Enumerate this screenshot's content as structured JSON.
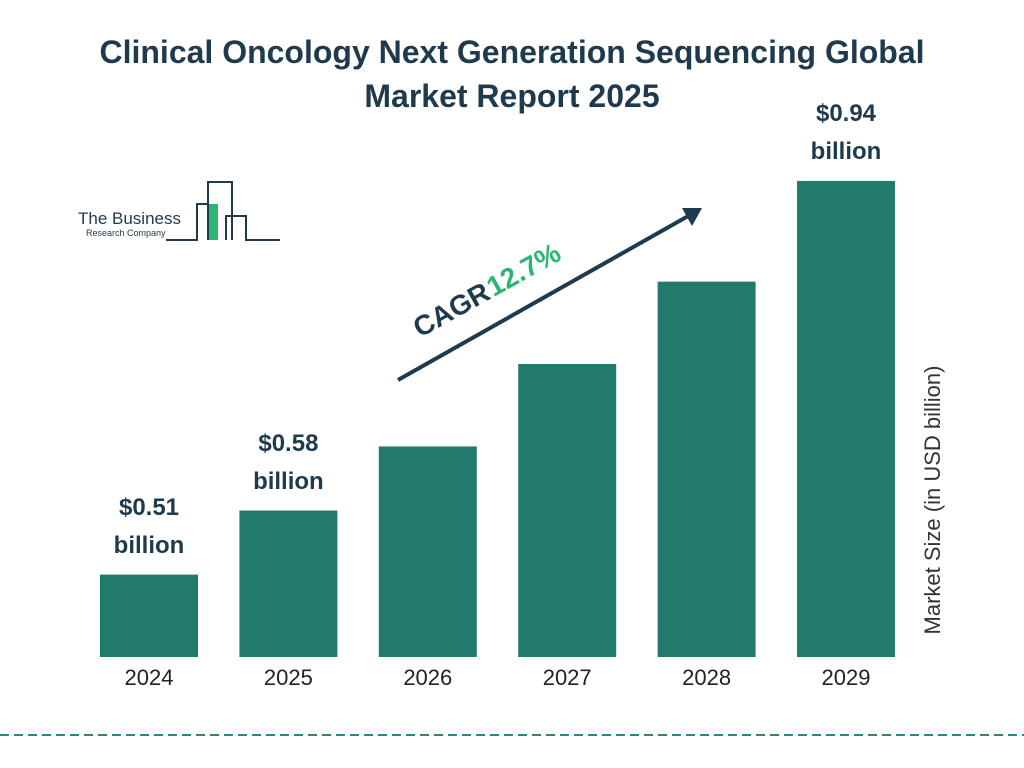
{
  "chart_data": {
    "type": "bar",
    "title": "Clinical Oncology Next Generation Sequencing Global Market Report 2025",
    "categories": [
      "2024",
      "2025",
      "2026",
      "2027",
      "2028",
      "2029"
    ],
    "values": [
      0.51,
      0.58,
      0.65,
      0.74,
      0.83,
      0.94
    ],
    "value_labels": [
      "$0.51 billion",
      "$0.58 billion",
      null,
      null,
      null,
      "$0.94 billion"
    ],
    "color": "#217a6b",
    "ylim": [
      0.42,
      1.0
    ],
    "y_axis_label": "Market Size (in USD billion)",
    "annotation": {
      "label": "CAGR",
      "value": "12.7%"
    },
    "logo": {
      "line1": "The Business",
      "line2": "Research Company"
    }
  }
}
